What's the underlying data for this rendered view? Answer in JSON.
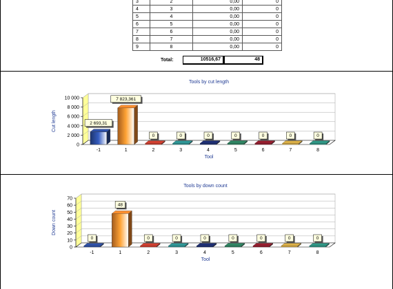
{
  "table": {
    "rows": [
      [
        "3",
        "2",
        "0,00",
        "0"
      ],
      [
        "4",
        "3",
        "0,00",
        "0"
      ],
      [
        "5",
        "4",
        "0,00",
        "0"
      ],
      [
        "6",
        "5",
        "0,00",
        "0"
      ],
      [
        "7",
        "6",
        "0,00",
        "0"
      ],
      [
        "8",
        "7",
        "0,00",
        "0"
      ],
      [
        "9",
        "8",
        "0,00",
        "0"
      ]
    ],
    "total_label": "Total:",
    "total_length": "10516,67",
    "total_count": "48"
  },
  "chart_data": [
    {
      "type": "bar",
      "title": "Tools by cut length",
      "xlabel": "Tool",
      "ylabel": "Cut length",
      "categories": [
        "-1",
        "1",
        "2",
        "3",
        "4",
        "5",
        "6",
        "7",
        "8"
      ],
      "values": [
        2693.31,
        7823.361,
        0,
        0,
        0,
        0,
        0,
        0,
        0
      ],
      "data_labels": [
        "2 693,31",
        "7 823,361",
        "0",
        "0",
        "0",
        "0",
        "0",
        "0",
        "0"
      ],
      "yticks": [
        "0",
        "2 000",
        "4 000",
        "6 000",
        "8 000",
        "10 000"
      ],
      "ylim": [
        0,
        10000
      ],
      "grid": true
    },
    {
      "type": "bar",
      "title": "Tools by down count",
      "xlabel": "Tool",
      "ylabel": "Down count",
      "categories": [
        "-1",
        "1",
        "2",
        "3",
        "4",
        "5",
        "6",
        "7",
        "8"
      ],
      "values": [
        0,
        48,
        0,
        0,
        0,
        0,
        0,
        0,
        0
      ],
      "data_labels": [
        "0",
        "48",
        "0",
        "0",
        "0",
        "0",
        "0",
        "0",
        "0"
      ],
      "yticks": [
        "0",
        "10",
        "20",
        "30",
        "40",
        "50",
        "60",
        "70"
      ],
      "ylim": [
        0,
        70
      ],
      "grid": true
    }
  ],
  "colors": {
    "series": [
      "#2a4a9a",
      "#e8822a",
      "#c0392b",
      "#2a8a8a",
      "#1a2a6a",
      "#2a7a5a",
      "#8a1a2a",
      "#c8a040",
      "#2a8a7a"
    ],
    "title": "#1f3a93",
    "wall": "#ffff99"
  }
}
